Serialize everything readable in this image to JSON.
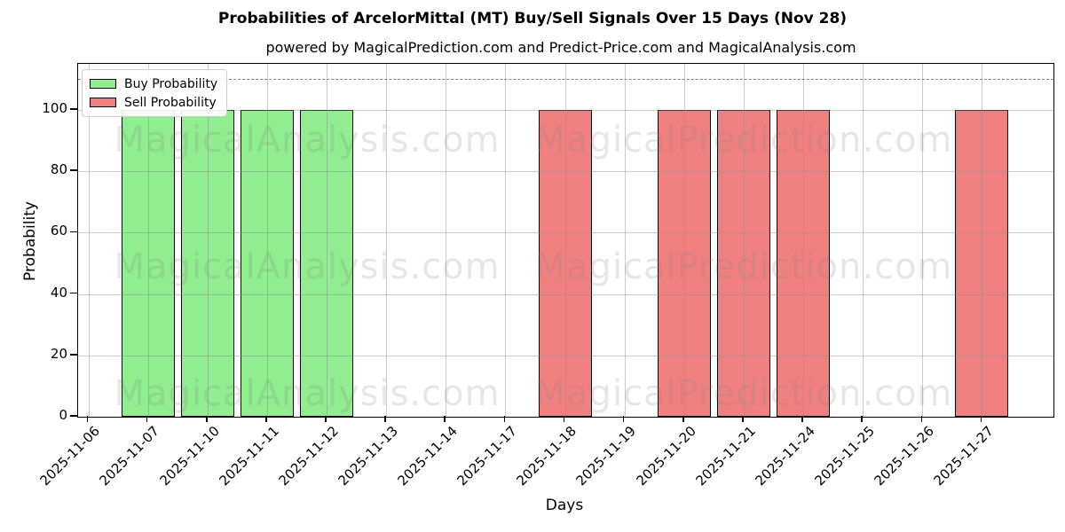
{
  "title": "Probabilities of ArcelorMittal (MT) Buy/Sell Signals Over 15 Days (Nov 28)",
  "subtitle": "powered by MagicalPrediction.com and Predict-Price.com and MagicalAnalysis.com",
  "watermarks": {
    "left_text": "MagicalAnalysis.com",
    "right_text": "MagicalPrediction.com"
  },
  "legend": {
    "items": [
      {
        "label": "Buy Probability",
        "color": "#90EE90"
      },
      {
        "label": "Sell Probability",
        "color": "#F08080"
      }
    ]
  },
  "colors": {
    "buy": "#90EE90",
    "sell": "#F08080",
    "bar_edge": "#000000",
    "grid": "#8c8c8c",
    "dashed_line": "#7f7f7f",
    "watermark": "#808080"
  },
  "chart_data": {
    "type": "bar",
    "title": "Probabilities of ArcelorMittal (MT) Buy/Sell Signals Over 15 Days (Nov 28)",
    "subtitle": "powered by MagicalPrediction.com and Predict-Price.com and MagicalAnalysis.com",
    "xlabel": "Days",
    "ylabel": "Probability",
    "categories": [
      "2025-11-06",
      "2025-11-07",
      "2025-11-10",
      "2025-11-11",
      "2025-11-12",
      "2025-11-13",
      "2025-11-14",
      "2025-11-17",
      "2025-11-18",
      "2025-11-19",
      "2025-11-20",
      "2025-11-21",
      "2025-11-24",
      "2025-11-25",
      "2025-11-26",
      "2025-11-27"
    ],
    "series": [
      {
        "name": "Buy Probability",
        "color": "#90EE90",
        "values": [
          0,
          100,
          100,
          100,
          100,
          0,
          0,
          0,
          0,
          0,
          0,
          0,
          0,
          0,
          0,
          0
        ]
      },
      {
        "name": "Sell Probability",
        "color": "#F08080",
        "values": [
          0,
          0,
          0,
          0,
          0,
          0,
          0,
          0,
          100,
          0,
          100,
          100,
          100,
          0,
          0,
          100
        ]
      }
    ],
    "yticks": [
      0,
      20,
      40,
      60,
      80,
      100
    ],
    "ylim": [
      0,
      115
    ],
    "dashed_line_y": 110,
    "grid": true,
    "legend_position": "upper left",
    "bar_width_fraction": 0.9
  }
}
